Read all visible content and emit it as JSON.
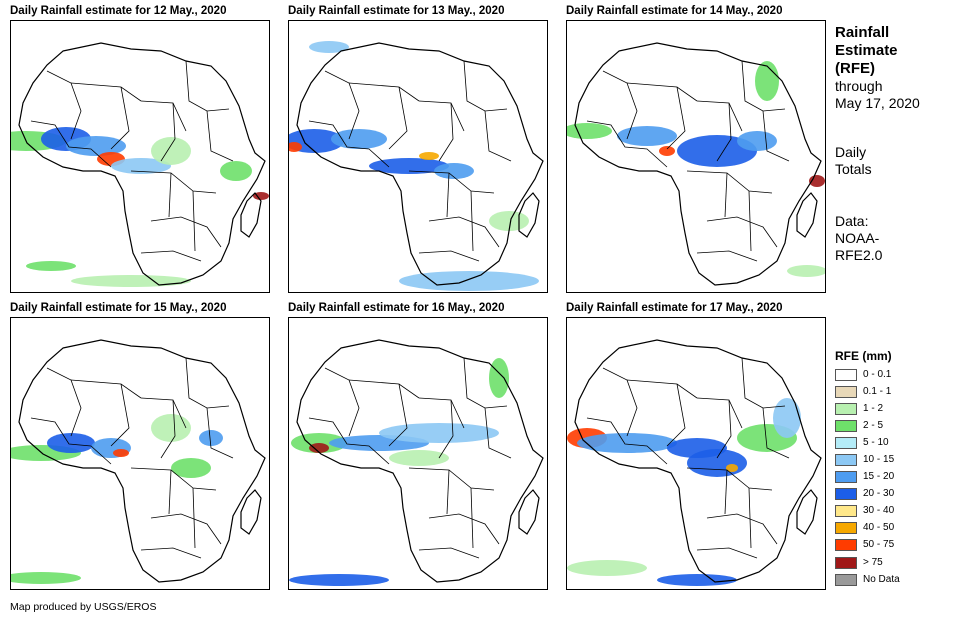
{
  "panels": [
    {
      "title": "Daily Rainfall estimate for 12 May., 2020"
    },
    {
      "title": "Daily Rainfall estimate for 13 May., 2020"
    },
    {
      "title": "Daily Rainfall estimate for 14 May., 2020"
    },
    {
      "title": "Daily Rainfall estimate for 15 May., 2020"
    },
    {
      "title": "Daily Rainfall estimate for 16 May., 2020"
    },
    {
      "title": "Daily Rainfall estimate for 17 May., 2020"
    }
  ],
  "side": {
    "title_lines": [
      "Rainfall",
      "Estimate",
      "(RFE)"
    ],
    "through_lines": [
      "through",
      "May 17, 2020"
    ],
    "totals_lines": [
      "Daily",
      "Totals"
    ],
    "data_lines": [
      "Data:",
      "NOAA-",
      "RFE2.0"
    ]
  },
  "legend": {
    "title": "RFE (mm)",
    "items": [
      {
        "label": "0 - 0.1",
        "color": "#ffffff"
      },
      {
        "label": "0.1 - 1",
        "color": "#e8d8b8"
      },
      {
        "label": "1 - 2",
        "color": "#b8f0b0"
      },
      {
        "label": "2 - 5",
        "color": "#6ee06a"
      },
      {
        "label": "5 - 10",
        "color": "#b4ecf8"
      },
      {
        "label": "10 - 15",
        "color": "#8cc8f4"
      },
      {
        "label": "15 - 20",
        "color": "#4e9cf0"
      },
      {
        "label": "20 - 30",
        "color": "#1c5ee8"
      },
      {
        "label": "30 - 40",
        "color": "#ffe88a"
      },
      {
        "label": "40 - 50",
        "color": "#f6a800"
      },
      {
        "label": "50 - 75",
        "color": "#ff3c00"
      },
      {
        "label": "> 75",
        "color": "#a01818"
      },
      {
        "label": "No Data",
        "color": "#9a9a9a"
      }
    ]
  },
  "credit": "Map produced by USGS/EROS"
}
